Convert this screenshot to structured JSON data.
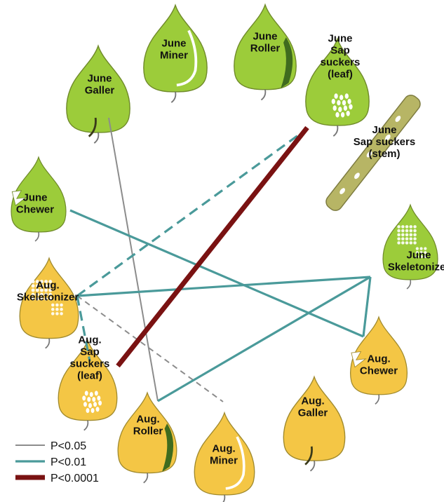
{
  "colors": {
    "june_fill": "#9ccc3a",
    "june_stroke": "#6f8a2a",
    "aug_fill": "#f4c645",
    "aug_stroke": "#a08a2e",
    "stem": "#b7b565",
    "roller_fold": "#3f6b1e",
    "p005": "#8c8c8c",
    "p001": "#4a9a9a",
    "p00001": "#7a1212"
  },
  "nodes": {
    "june_galler": {
      "lines": [
        "June",
        "Galler"
      ]
    },
    "june_miner": {
      "lines": [
        "June",
        "Miner"
      ]
    },
    "june_roller": {
      "lines": [
        "June",
        "Roller"
      ]
    },
    "june_sap_leaf": {
      "lines": [
        "June",
        "Sap",
        "suckers",
        "(leaf)"
      ]
    },
    "june_sap_stem": {
      "lines": [
        "June",
        "Sap suckers",
        "(stem)"
      ]
    },
    "june_chewer": {
      "lines": [
        "June",
        "Chewer"
      ]
    },
    "june_skeletonizer": {
      "lines": [
        "June",
        "Skeletonizer"
      ]
    },
    "aug_skeletonizer": {
      "lines": [
        "Aug.",
        "Skeletonizer"
      ]
    },
    "aug_sap_leaf": {
      "lines": [
        "Aug.",
        "Sap",
        "suckers",
        "(leaf)"
      ]
    },
    "aug_chewer": {
      "lines": [
        "Aug.",
        "Chewer"
      ]
    },
    "aug_galler": {
      "lines": [
        "Aug.",
        "Galler"
      ]
    },
    "aug_roller": {
      "lines": [
        "Aug.",
        "Roller"
      ]
    },
    "aug_miner": {
      "lines": [
        "Aug.",
        "Miner"
      ]
    }
  },
  "edges": [
    {
      "from": "june_galler",
      "to": "aug_roller",
      "p": "P<0.05",
      "dashed": false
    },
    {
      "from": "aug_skeletonizer",
      "to": "aug_miner",
      "p": "P<0.05",
      "dashed": true
    },
    {
      "from": "june_chewer",
      "to": "aug_chewer",
      "p": "P<0.01",
      "dashed": false
    },
    {
      "from": "aug_chewer",
      "to": "june_skeletonizer",
      "p": "P<0.01",
      "dashed": false
    },
    {
      "from": "june_skeletonizer",
      "to": "aug_skeletonizer",
      "p": "P<0.01",
      "dashed": false
    },
    {
      "from": "june_skeletonizer",
      "to": "aug_roller",
      "p": "P<0.01",
      "dashed": false
    },
    {
      "from": "aug_skeletonizer",
      "to": "june_sap_leaf",
      "p": "P<0.01",
      "dashed": true
    },
    {
      "from": "aug_skeletonizer",
      "to": "aug_sap_leaf",
      "p": "P<0.01",
      "dashed": true
    },
    {
      "from": "june_sap_leaf",
      "to": "aug_sap_leaf",
      "p": "P<0.0001",
      "dashed": false
    }
  ],
  "legend": [
    {
      "label": "P<0.05",
      "color": "#8c8c8c",
      "weight": "thin"
    },
    {
      "label": "P<0.01",
      "color": "#4a9a9a",
      "weight": "medium"
    },
    {
      "label": "P<0.0001",
      "color": "#7a1212",
      "weight": "thick"
    }
  ]
}
